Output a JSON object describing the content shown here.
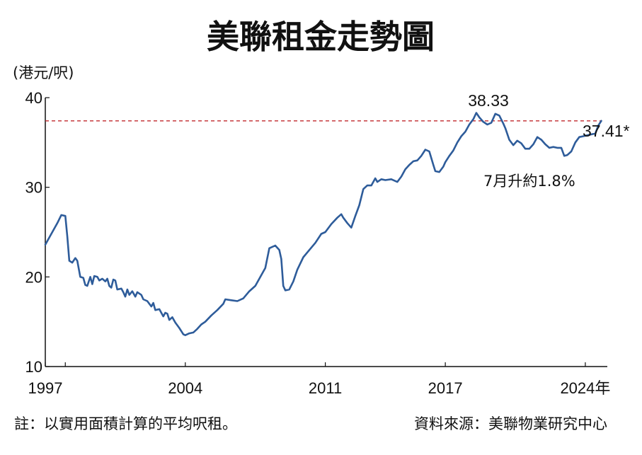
{
  "chart_data": {
    "type": "line",
    "title": "美聯租金走勢圖",
    "unit_label": "(港元/呎)",
    "ylim": [
      10,
      40
    ],
    "y_ticks": [
      10,
      20,
      30,
      40
    ],
    "x_ticks": [
      {
        "value": 1997,
        "label": "1997"
      },
      {
        "value": 2004,
        "label": "2004"
      },
      {
        "value": 2011,
        "label": "2011"
      },
      {
        "value": 2017,
        "label": "2017"
      },
      {
        "value": 2024,
        "label": "2024年"
      }
    ],
    "grid": false,
    "reference_line": {
      "value": 37.41,
      "color": "#c0282d",
      "style": "dashed"
    },
    "annotations": {
      "peak": {
        "label": "38.33",
        "x": 2018.5,
        "y": 38.33
      },
      "latest": {
        "label": "37.41*",
        "x": 2024.8,
        "y": 37.41
      },
      "change": {
        "label": "7月升約1.8%"
      }
    },
    "series": [
      {
        "color": "#2e5c9a",
        "points": [
          [
            1997.0,
            23.6
          ],
          [
            1997.3,
            24.8
          ],
          [
            1997.6,
            26.0
          ],
          [
            1997.8,
            26.9
          ],
          [
            1998.0,
            26.8
          ],
          [
            1998.1,
            24.5
          ],
          [
            1998.2,
            21.8
          ],
          [
            1998.35,
            21.6
          ],
          [
            1998.5,
            22.1
          ],
          [
            1998.6,
            21.8
          ],
          [
            1998.75,
            20.0
          ],
          [
            1998.9,
            19.9
          ],
          [
            1999.0,
            19.1
          ],
          [
            1999.1,
            19.0
          ],
          [
            1999.25,
            20.0
          ],
          [
            1999.35,
            19.2
          ],
          [
            1999.45,
            20.1
          ],
          [
            1999.6,
            20.0
          ],
          [
            1999.7,
            19.6
          ],
          [
            1999.85,
            19.8
          ],
          [
            2000.0,
            19.5
          ],
          [
            2000.1,
            19.8
          ],
          [
            2000.2,
            19.0
          ],
          [
            2000.3,
            18.8
          ],
          [
            2000.4,
            19.7
          ],
          [
            2000.5,
            19.6
          ],
          [
            2000.6,
            18.6
          ],
          [
            2000.8,
            18.7
          ],
          [
            2000.9,
            18.3
          ],
          [
            2001.0,
            17.8
          ],
          [
            2001.1,
            18.6
          ],
          [
            2001.2,
            18.0
          ],
          [
            2001.35,
            18.4
          ],
          [
            2001.5,
            17.8
          ],
          [
            2001.6,
            18.3
          ],
          [
            2001.8,
            18.0
          ],
          [
            2001.9,
            17.5
          ],
          [
            2002.1,
            17.3
          ],
          [
            2002.3,
            16.7
          ],
          [
            2002.4,
            17.1
          ],
          [
            2002.5,
            16.3
          ],
          [
            2002.7,
            16.4
          ],
          [
            2002.8,
            16.0
          ],
          [
            2002.9,
            15.6
          ],
          [
            2003.0,
            16.0
          ],
          [
            2003.1,
            15.9
          ],
          [
            2003.2,
            15.2
          ],
          [
            2003.35,
            15.5
          ],
          [
            2003.5,
            14.9
          ],
          [
            2003.7,
            14.3
          ],
          [
            2003.9,
            13.6
          ],
          [
            2004.0,
            13.5
          ],
          [
            2004.2,
            13.7
          ],
          [
            2004.4,
            13.8
          ],
          [
            2004.6,
            14.2
          ],
          [
            2004.8,
            14.7
          ],
          [
            2005.0,
            15.0
          ],
          [
            2005.3,
            15.7
          ],
          [
            2005.6,
            16.3
          ],
          [
            2005.9,
            17.0
          ],
          [
            2006.0,
            17.5
          ],
          [
            2006.3,
            17.4
          ],
          [
            2006.6,
            17.3
          ],
          [
            2006.9,
            17.6
          ],
          [
            2007.2,
            18.4
          ],
          [
            2007.5,
            19.0
          ],
          [
            2007.8,
            20.2
          ],
          [
            2008.0,
            21.0
          ],
          [
            2008.2,
            23.2
          ],
          [
            2008.5,
            23.5
          ],
          [
            2008.7,
            23.0
          ],
          [
            2008.8,
            22.0
          ],
          [
            2008.9,
            19.0
          ],
          [
            2009.0,
            18.5
          ],
          [
            2009.2,
            18.6
          ],
          [
            2009.4,
            19.5
          ],
          [
            2009.6,
            20.8
          ],
          [
            2009.9,
            22.2
          ],
          [
            2010.2,
            23.0
          ],
          [
            2010.5,
            23.8
          ],
          [
            2010.8,
            24.8
          ],
          [
            2011.0,
            25.0
          ],
          [
            2011.3,
            25.9
          ],
          [
            2011.6,
            26.6
          ],
          [
            2011.8,
            27.0
          ],
          [
            2011.9,
            26.6
          ],
          [
            2012.1,
            26.0
          ],
          [
            2012.3,
            25.5
          ],
          [
            2012.5,
            26.8
          ],
          [
            2012.7,
            28.0
          ],
          [
            2012.9,
            29.8
          ],
          [
            2013.1,
            30.2
          ],
          [
            2013.3,
            30.2
          ],
          [
            2013.5,
            31.0
          ],
          [
            2013.6,
            30.6
          ],
          [
            2013.8,
            30.9
          ],
          [
            2014.0,
            30.8
          ],
          [
            2014.3,
            30.9
          ],
          [
            2014.6,
            30.6
          ],
          [
            2014.8,
            31.2
          ],
          [
            2015.0,
            32.0
          ],
          [
            2015.2,
            32.5
          ],
          [
            2015.4,
            32.9
          ],
          [
            2015.6,
            33.0
          ],
          [
            2015.8,
            33.5
          ],
          [
            2016.0,
            34.2
          ],
          [
            2016.2,
            34.0
          ],
          [
            2016.4,
            32.5
          ],
          [
            2016.5,
            31.8
          ],
          [
            2016.7,
            31.7
          ],
          [
            2016.9,
            32.3
          ],
          [
            2017.0,
            32.8
          ],
          [
            2017.2,
            33.5
          ],
          [
            2017.4,
            34.1
          ],
          [
            2017.6,
            35.0
          ],
          [
            2017.8,
            35.7
          ],
          [
            2018.0,
            36.2
          ],
          [
            2018.2,
            37.0
          ],
          [
            2018.4,
            37.6
          ],
          [
            2018.55,
            38.3
          ],
          [
            2018.7,
            37.8
          ],
          [
            2018.9,
            37.3
          ],
          [
            2019.1,
            37.0
          ],
          [
            2019.3,
            37.2
          ],
          [
            2019.5,
            38.2
          ],
          [
            2019.7,
            38.0
          ],
          [
            2019.9,
            37.1
          ],
          [
            2020.0,
            36.6
          ],
          [
            2020.2,
            35.3
          ],
          [
            2020.4,
            34.7
          ],
          [
            2020.6,
            35.2
          ],
          [
            2020.8,
            34.9
          ],
          [
            2021.0,
            34.3
          ],
          [
            2021.2,
            34.3
          ],
          [
            2021.4,
            34.8
          ],
          [
            2021.6,
            35.6
          ],
          [
            2021.8,
            35.3
          ],
          [
            2022.0,
            34.8
          ],
          [
            2022.2,
            34.4
          ],
          [
            2022.4,
            34.5
          ],
          [
            2022.6,
            34.4
          ],
          [
            2022.8,
            34.4
          ],
          [
            2022.95,
            33.5
          ],
          [
            2023.1,
            33.6
          ],
          [
            2023.3,
            34.0
          ],
          [
            2023.5,
            35.0
          ],
          [
            2023.7,
            35.6
          ],
          [
            2023.9,
            35.7
          ],
          [
            2024.1,
            35.8
          ],
          [
            2024.3,
            35.9
          ],
          [
            2024.5,
            36.0
          ],
          [
            2024.65,
            36.9
          ],
          [
            2024.8,
            37.41
          ]
        ]
      }
    ]
  },
  "footer": {
    "note": "註：以實用面積計算的平均呎租。",
    "source": "資料來源：美聯物業研究中心"
  }
}
